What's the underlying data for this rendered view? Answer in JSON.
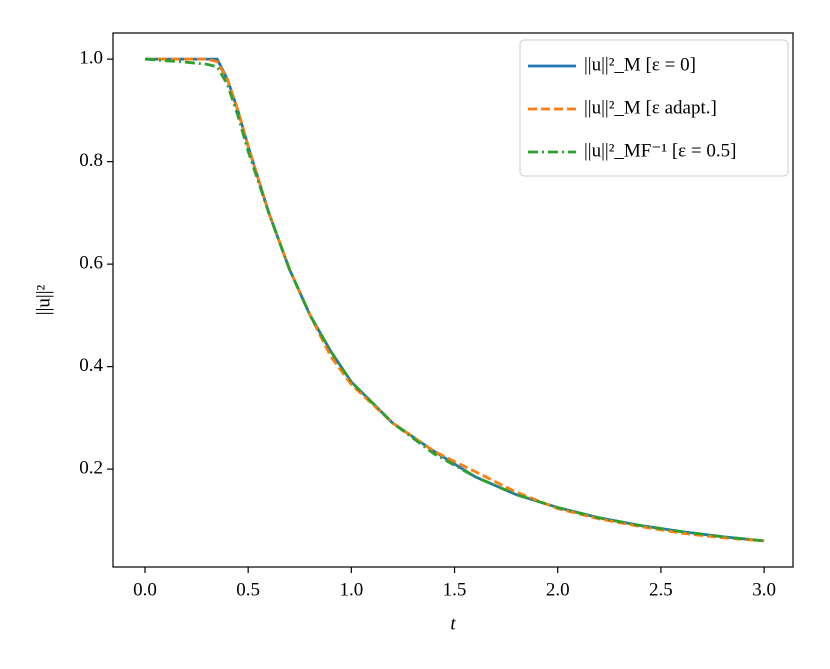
{
  "chart_data": {
    "type": "line",
    "xlabel": "t",
    "ylabel": "||u||²",
    "x": [
      0,
      0.1,
      0.2,
      0.3,
      0.35,
      0.4,
      0.45,
      0.5,
      0.6,
      0.7,
      0.8,
      0.9,
      1.0,
      1.2,
      1.4,
      1.6,
      1.8,
      2.0,
      2.2,
      2.4,
      2.6,
      2.8,
      3.0
    ],
    "series": [
      {
        "name": "||u||²_M [ε = 0]",
        "color": "#1f77b4",
        "dash": "solid",
        "values": [
          1.0,
          1.0,
          1.0,
          1.0,
          1.0,
          0.96,
          0.9,
          0.83,
          0.7,
          0.59,
          0.5,
          0.43,
          0.37,
          0.29,
          0.235,
          0.185,
          0.15,
          0.125,
          0.105,
          0.09,
          0.078,
          0.068,
          0.06
        ]
      },
      {
        "name": "||u||²_M [ε adapt.]",
        "color": "#ff7f0e",
        "dash": "dashed",
        "values": [
          1.0,
          1.0,
          1.0,
          1.0,
          0.995,
          0.96,
          0.9,
          0.83,
          0.7,
          0.59,
          0.5,
          0.42,
          0.365,
          0.29,
          0.235,
          0.195,
          0.155,
          0.123,
          0.103,
          0.088,
          0.075,
          0.066,
          0.06
        ]
      },
      {
        "name": "||u||²_MF⁻¹ [ε = 0.5]",
        "color": "#2ca02c",
        "dash": "dashdot",
        "values": [
          1.0,
          0.997,
          0.994,
          0.99,
          0.985,
          0.95,
          0.89,
          0.82,
          0.7,
          0.59,
          0.5,
          0.43,
          0.37,
          0.29,
          0.23,
          0.185,
          0.15,
          0.125,
          0.105,
          0.09,
          0.078,
          0.068,
          0.06
        ]
      }
    ],
    "xlim": [
      -0.155,
      3.14
    ],
    "ylim": [
      0.009,
      1.051
    ],
    "xticks": [
      {
        "value": 0,
        "label": "0.0"
      },
      0.5,
      {
        "value": 1,
        "label": "1.0"
      },
      1.5,
      {
        "value": 2,
        "label": "2.0"
      },
      2.5,
      {
        "value": 3,
        "label": "3.0"
      }
    ],
    "yticks": [
      0.2,
      0.4,
      0.6,
      0.8,
      {
        "value": 1,
        "label": "1.0"
      }
    ],
    "legend": "upper right",
    "grid": false
  }
}
